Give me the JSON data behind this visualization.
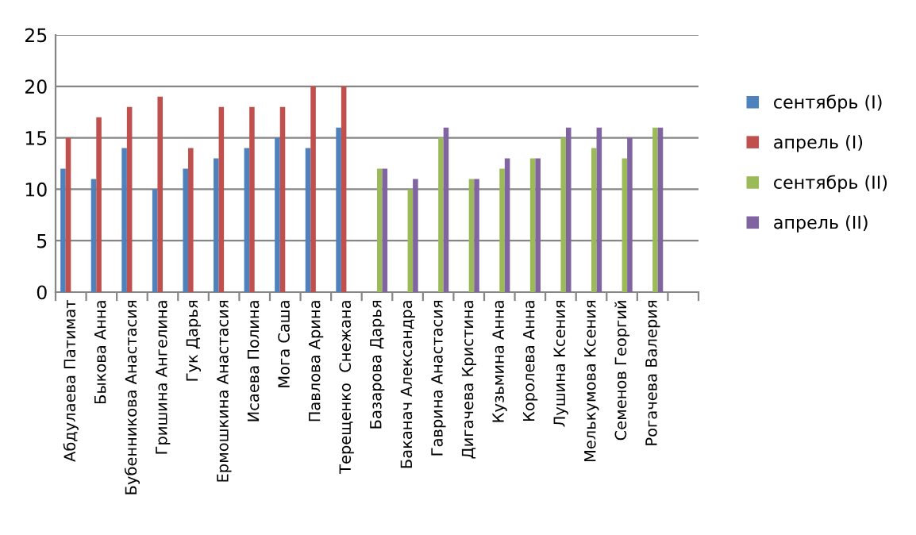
{
  "chart_data": {
    "type": "bar",
    "categories": [
      "Абдулаева Патимат",
      "Быкова Анна",
      "Бубенникова Анастасия",
      "Гришина Ангелина",
      "Гук Дарья",
      "Ермошкина Анастасия",
      "Исаева Полина",
      "Мога Саша",
      "Павлова Арина",
      "Терещенко  Снежана",
      "Базарова Дарья",
      "Баканач Александра",
      "Гаврина Анастасия",
      "Дигачева Кристина",
      "Кузьмина Анна",
      "Королева Анна",
      "Лушина Ксения",
      "Мелькумова Ксения",
      "Семенов Георгий",
      "Рогачева Валерия",
      null
    ],
    "series": [
      {
        "name": "сентябрь (I)",
        "color": "#4f81bd",
        "values": [
          12,
          11,
          14,
          10,
          12,
          13,
          14,
          15,
          14,
          16,
          null,
          null,
          null,
          null,
          null,
          null,
          null,
          null,
          null,
          null,
          null
        ]
      },
      {
        "name": "апрель (I)",
        "color": "#c0504d",
        "values": [
          15,
          17,
          18,
          19,
          14,
          18,
          18,
          18,
          20,
          20,
          null,
          null,
          null,
          null,
          null,
          null,
          null,
          null,
          null,
          null,
          null
        ]
      },
      {
        "name": "сентябрь (II)",
        "color": "#9bbb59",
        "values": [
          null,
          null,
          null,
          null,
          null,
          null,
          null,
          null,
          null,
          null,
          12,
          10,
          15,
          11,
          12,
          13,
          15,
          14,
          13,
          16,
          null
        ]
      },
      {
        "name": "апрель (II)",
        "color": "#8064a2",
        "values": [
          null,
          null,
          null,
          null,
          null,
          null,
          null,
          null,
          null,
          null,
          12,
          11,
          16,
          11,
          13,
          13,
          16,
          16,
          15,
          16,
          null
        ]
      }
    ],
    "ylim": [
      0,
      25
    ],
    "yticks": [
      0,
      5,
      10,
      15,
      20,
      25
    ],
    "grid": "y",
    "legend": "right"
  }
}
